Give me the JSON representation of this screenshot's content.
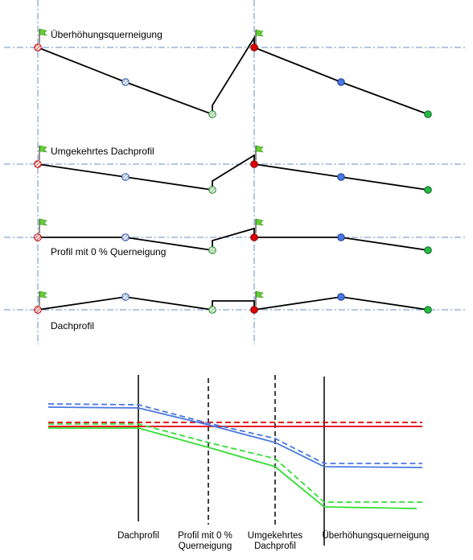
{
  "profiles": [
    {
      "label": "Überhöhungsquerneigung"
    },
    {
      "label": "Umgekehrtes Dachprofil"
    },
    {
      "label": "Profil mit 0 % Querneigung"
    },
    {
      "label": "Dachprofil"
    }
  ],
  "transition_labels": [
    {
      "line1": "Dachprofil",
      "line2": ""
    },
    {
      "line1": "Profil mit 0 %",
      "line2": "Querneigung"
    },
    {
      "line1": "Umgekehrtes",
      "line2": "Dachprofil"
    },
    {
      "line1": "Überhöhungsquerneigung",
      "line2": ""
    }
  ],
  "colors": {
    "red": "#e00000",
    "blue": "#4a78e0",
    "green": "#33cc33",
    "guide": "#6a8cc0",
    "flag": "#66cc33"
  }
}
